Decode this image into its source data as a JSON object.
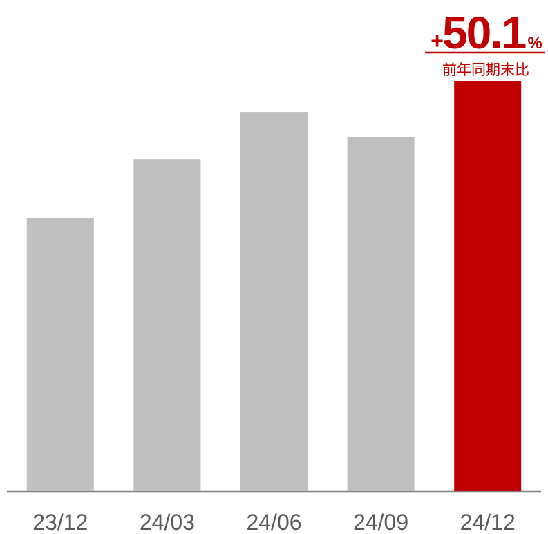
{
  "chart_data": {
    "type": "bar",
    "categories": [
      "23/12",
      "24/03",
      "24/06",
      "24/09",
      "24/12"
    ],
    "values": [
      100,
      121.5,
      138.7,
      129.4,
      150.1
    ],
    "colors": [
      "#bfbfbf",
      "#bfbfbf",
      "#bfbfbf",
      "#bfbfbf",
      "#c00000"
    ],
    "annotation": {
      "prefix": "+",
      "value": "50.1",
      "suffix": "%",
      "caption": "前年同期末比"
    }
  }
}
